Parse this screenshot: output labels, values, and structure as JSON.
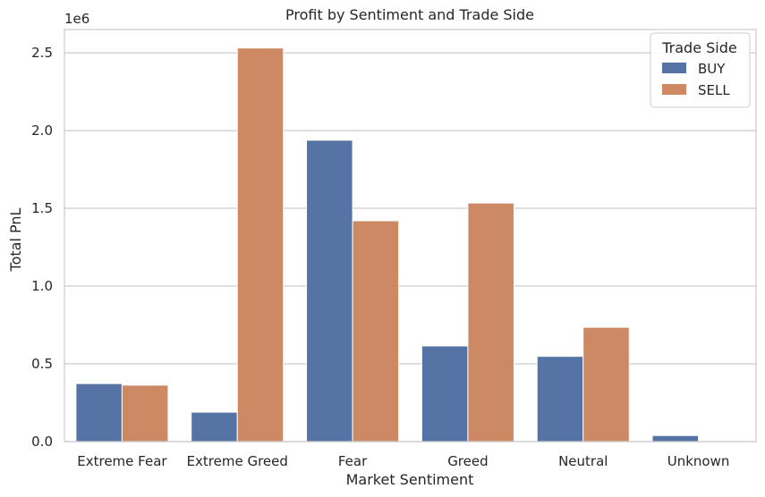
{
  "chart_data": {
    "type": "bar",
    "title": "Profit by Sentiment and Trade Side",
    "xlabel": "Market Sentiment",
    "ylabel": "Total PnL",
    "y_offset_label": "1e6",
    "categories": [
      "Extreme Fear",
      "Extreme Greed",
      "Fear",
      "Greed",
      "Neutral",
      "Unknown"
    ],
    "series": [
      {
        "name": "BUY",
        "color": "#5673a6",
        "values": [
          0.373,
          0.189,
          1.938,
          0.615,
          0.548,
          0.039
        ]
      },
      {
        "name": "SELL",
        "color": "#cc8963",
        "values": [
          0.363,
          2.531,
          1.42,
          1.534,
          0.735,
          0.0
        ]
      }
    ],
    "ylim": [
      0,
      2.65
    ],
    "yticks": [
      0.0,
      0.5,
      1.0,
      1.5,
      2.0,
      2.5
    ],
    "ytick_labels": [
      "0.0",
      "0.5",
      "1.0",
      "1.5",
      "2.0",
      "2.5"
    ],
    "legend": {
      "title": "Trade Side",
      "placement": "top-right"
    },
    "grid": "horizontal"
  }
}
